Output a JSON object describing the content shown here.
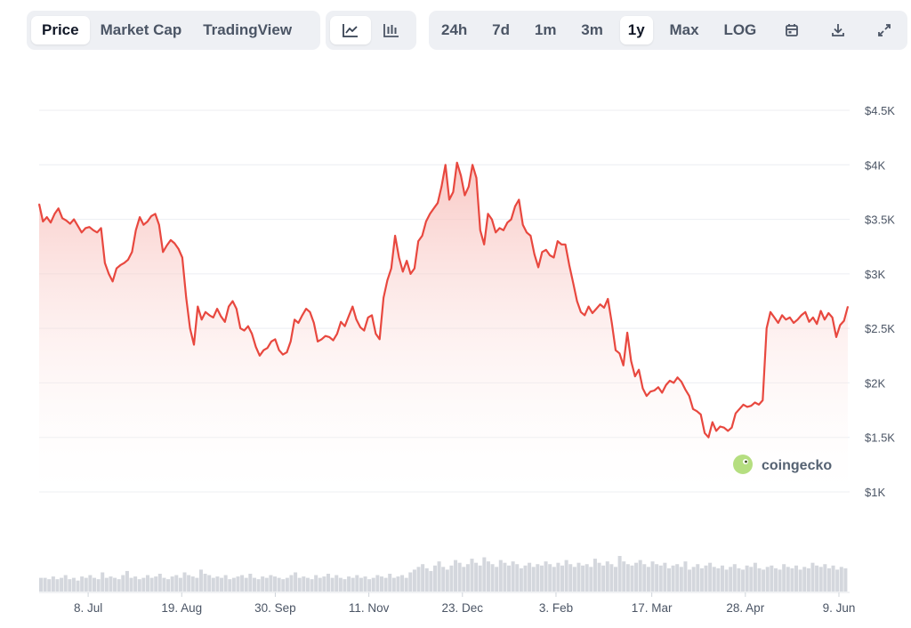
{
  "toolbar": {
    "tabs": [
      {
        "label": "Price",
        "active": true
      },
      {
        "label": "Market Cap",
        "active": false
      },
      {
        "label": "TradingView",
        "active": false
      }
    ],
    "chart_types": [
      {
        "icon": "line-chart-icon",
        "active": true
      },
      {
        "icon": "candlestick-chart-icon",
        "active": false
      }
    ],
    "ranges": [
      {
        "label": "24h",
        "active": false
      },
      {
        "label": "7d",
        "active": false
      },
      {
        "label": "1m",
        "active": false
      },
      {
        "label": "3m",
        "active": false
      },
      {
        "label": "1y",
        "active": true
      },
      {
        "label": "Max",
        "active": false
      },
      {
        "label": "LOG",
        "active": false
      }
    ],
    "actions": [
      "calendar-icon",
      "download-icon",
      "fullscreen-icon"
    ]
  },
  "watermark": {
    "text": "coingecko",
    "icon": "coingecko-logo-icon"
  },
  "colors": {
    "line": "#e8483f",
    "fill_top": "#f7b7b2",
    "fill_bottom": "#ffffff",
    "grid": "#eceef2",
    "volume": "#d4d7dd",
    "text": "#4b5565"
  },
  "chart_data": {
    "type": "area",
    "series": [
      {
        "x_start": "2023-06-16",
        "x_end": "2024-06-13",
        "values": [
          3640,
          3480,
          3520,
          3470,
          3550,
          3600,
          3510,
          3490,
          3460,
          3500,
          3440,
          3380,
          3420,
          3430,
          3400,
          3380,
          3420,
          3100,
          3000,
          2930,
          3050,
          3080,
          3100,
          3130,
          3200,
          3400,
          3520,
          3450,
          3480,
          3530,
          3550,
          3450,
          3200,
          3260,
          3310,
          3280,
          3230,
          3150,
          2780,
          2500,
          2350,
          2700,
          2580,
          2650,
          2620,
          2600,
          2680,
          2610,
          2560,
          2700,
          2750,
          2680,
          2500,
          2480,
          2520,
          2450,
          2330,
          2250,
          2300,
          2320,
          2380,
          2400,
          2300,
          2260,
          2280,
          2380,
          2580,
          2550,
          2620,
          2680,
          2650,
          2550,
          2380,
          2400,
          2430,
          2420,
          2390,
          2450,
          2560,
          2520,
          2610,
          2700,
          2580,
          2510,
          2480,
          2600,
          2620,
          2450,
          2400,
          2780,
          2940,
          3050,
          3350,
          3150,
          3020,
          3120,
          3000,
          3050,
          3300,
          3350,
          3480,
          3550,
          3600,
          3650,
          3800,
          4000,
          3680,
          3750,
          4020,
          3900,
          3720,
          3800,
          4000,
          3880,
          3400,
          3270,
          3550,
          3500,
          3380,
          3420,
          3400,
          3470,
          3500,
          3620,
          3680,
          3450,
          3380,
          3350,
          3180,
          3060,
          3200,
          3220,
          3170,
          3150,
          3300,
          3270,
          3270,
          3080,
          2920,
          2750,
          2650,
          2620,
          2700,
          2640,
          2680,
          2720,
          2690,
          2770,
          2550,
          2300,
          2270,
          2160,
          2460,
          2200,
          2060,
          2120,
          1950,
          1880,
          1920,
          1930,
          1960,
          1910,
          1980,
          2020,
          2000,
          2050,
          2010,
          1940,
          1880,
          1760,
          1740,
          1710,
          1540,
          1500,
          1640,
          1560,
          1600,
          1590,
          1560,
          1590,
          1720,
          1760,
          1800,
          1780,
          1790,
          1820,
          1800,
          1840,
          2500,
          2650,
          2600,
          2550,
          2620,
          2580,
          2600,
          2550,
          2580,
          2620,
          2650,
          2560,
          2600,
          2540,
          2660,
          2580,
          2640,
          2600,
          2420,
          2530,
          2570,
          2700
        ]
      }
    ],
    "volume": [
      1,
      1,
      0.9,
      1.1,
      0.9,
      1,
      1.2,
      0.9,
      1,
      0.8,
      1.1,
      1,
      1.2,
      1,
      0.9,
      1.4,
      1,
      1.1,
      1,
      0.9,
      1.2,
      1.5,
      1,
      1.1,
      0.9,
      1,
      1.2,
      1,
      1.1,
      1.3,
      1,
      0.9,
      1.1,
      1.2,
      1,
      1.4,
      1.2,
      1.1,
      1,
      1.6,
      1.3,
      1.2,
      1,
      1.1,
      1,
      1.2,
      0.9,
      1,
      1.1,
      1.2,
      1,
      1.3,
      1,
      0.9,
      1.1,
      1,
      1.2,
      1.1,
      1,
      0.9,
      1,
      1.2,
      1.4,
      1,
      1.1,
      1,
      0.9,
      1.2,
      1,
      1.1,
      1.3,
      1,
      1.2,
      1,
      0.9,
      1.1,
      1,
      1.2,
      1,
      1.1,
      0.9,
      1,
      1.2,
      1.1,
      1,
      1.3,
      1,
      1.1,
      1.2,
      1,
      1.4,
      1.6,
      1.8,
      2,
      1.7,
      1.5,
      1.9,
      2.2,
      1.8,
      1.6,
      1.9,
      2.3,
      2.1,
      1.8,
      2,
      2.4,
      2.1,
      1.9,
      2.5,
      2.2,
      2,
      1.8,
      2.3,
      2.1,
      1.9,
      2.2,
      2,
      1.7,
      1.9,
      2.1,
      1.8,
      2,
      1.9,
      2.2,
      2,
      1.8,
      2.1,
      1.9,
      2.3,
      2,
      1.8,
      2.1,
      1.9,
      2,
      1.8,
      2.4,
      2.1,
      1.9,
      2.2,
      2,
      1.8,
      2.6,
      2.2,
      2,
      1.9,
      2.1,
      2.3,
      2,
      1.8,
      2.2,
      2,
      1.9,
      2.1,
      1.7,
      1.9,
      2,
      1.8,
      2.2,
      1.6,
      1.8,
      2,
      1.7,
      1.9,
      2.1,
      1.8,
      1.7,
      1.9,
      1.6,
      1.8,
      2,
      1.7,
      1.6,
      1.9,
      1.8,
      2.1,
      1.7,
      1.6,
      1.8,
      1.9,
      1.7,
      1.6,
      2,
      1.8,
      1.7,
      1.9,
      1.6,
      1.8,
      1.7,
      2.1,
      1.9,
      1.8,
      2,
      1.7,
      1.9,
      1.6,
      1.8,
      1.7
    ],
    "y_ticks": [
      {
        "value": 1000,
        "label": "$1K"
      },
      {
        "value": 1500,
        "label": "$1.5K"
      },
      {
        "value": 2000,
        "label": "$2K"
      },
      {
        "value": 2500,
        "label": "$2.5K"
      },
      {
        "value": 3000,
        "label": "$3K"
      },
      {
        "value": 3500,
        "label": "$3.5K"
      },
      {
        "value": 4000,
        "label": "$4K"
      },
      {
        "value": 4500,
        "label": "$4.5K"
      }
    ],
    "x_ticks": [
      {
        "date": "2023-07-08",
        "label": "8. Jul"
      },
      {
        "date": "2023-08-19",
        "label": "19. Aug"
      },
      {
        "date": "2023-09-30",
        "label": "30. Sep"
      },
      {
        "date": "2023-11-11",
        "label": "11. Nov"
      },
      {
        "date": "2023-12-23",
        "label": "23. Dec"
      },
      {
        "date": "2024-02-03",
        "label": "3. Feb"
      },
      {
        "date": "2024-03-17",
        "label": "17. Mar"
      },
      {
        "date": "2024-04-28",
        "label": "28. Apr"
      },
      {
        "date": "2024-06-09",
        "label": "9. Jun"
      }
    ],
    "ylim": [
      1000,
      4500
    ],
    "grid": true
  }
}
